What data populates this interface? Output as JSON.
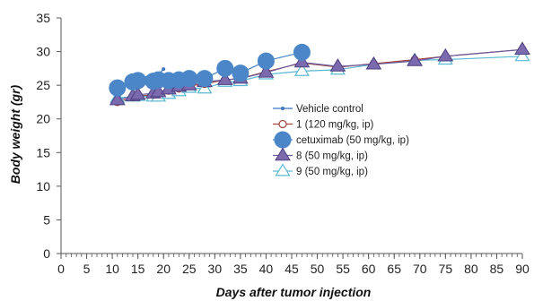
{
  "chart_data": {
    "type": "line",
    "xlabel": "Days after tumor injection",
    "ylabel": "Body weight (gr)",
    "xlim": [
      0,
      90
    ],
    "ylim": [
      0,
      35
    ],
    "xticks": [
      "0",
      "5",
      "10",
      "15",
      "20",
      "25",
      "30",
      "35",
      "40",
      "45",
      "50",
      "55",
      "60",
      "65",
      "70",
      "75",
      "80",
      "85",
      "90"
    ],
    "yticks": [
      "0",
      "5",
      "10",
      "15",
      "20",
      "25",
      "30",
      "35"
    ],
    "grid": false,
    "legend_position": "center-right",
    "series": [
      {
        "name": "Vehicle control",
        "color": "#3a78c2",
        "marker": "small-dot",
        "x": [
          11,
          14,
          15,
          18,
          19,
          20
        ],
        "y": [
          24.8,
          25.8,
          26.2,
          26.3,
          26.6,
          27.4
        ]
      },
      {
        "name": "1 (120 mg/kg, ip)",
        "color": "#a0443c",
        "marker": "open-circle",
        "x": [
          11,
          14,
          15,
          18,
          19,
          21,
          23,
          25,
          28,
          32,
          35,
          40,
          47,
          54,
          61,
          69,
          75,
          90
        ],
        "y": [
          22.5,
          23.2,
          23.4,
          23.6,
          23.8,
          24.2,
          24.5,
          24.9,
          25.2,
          25.8,
          26.0,
          27.0,
          28.3,
          27.7,
          28.2,
          28.8,
          29.3,
          30.3
        ]
      },
      {
        "name": "cetuximab (50 mg/kg, ip)",
        "color": "#4a86c8",
        "marker": "big-circle",
        "x": [
          11,
          14,
          15,
          18,
          19,
          21,
          23,
          25,
          28,
          32,
          35,
          40,
          47
        ],
        "y": [
          24.6,
          25.5,
          25.7,
          25.6,
          25.8,
          25.7,
          25.8,
          26.0,
          26.0,
          27.5,
          26.8,
          28.6,
          29.9
        ]
      },
      {
        "name": "8 (50 mg/kg, ip)",
        "color": "#6a5a9e",
        "marker": "filled-triangle",
        "x": [
          11,
          14,
          15,
          18,
          19,
          21,
          23,
          25,
          28,
          32,
          35,
          40,
          47,
          54,
          61,
          69,
          75,
          90
        ],
        "y": [
          22.8,
          23.4,
          23.6,
          23.8,
          24.0,
          24.4,
          24.8,
          25.0,
          25.5,
          25.8,
          26.0,
          26.9,
          28.4,
          27.8,
          28.1,
          28.6,
          29.3,
          30.3
        ]
      },
      {
        "name": "9 (50 mg/kg, ip)",
        "color": "#5bb8d4",
        "marker": "open-triangle",
        "x": [
          11,
          14,
          15,
          18,
          19,
          21,
          23,
          25,
          28,
          32,
          35,
          40,
          47,
          54,
          61,
          69,
          75,
          90
        ],
        "y": [
          23.1,
          23.3,
          23.4,
          23.3,
          23.3,
          23.7,
          24.1,
          24.6,
          24.5,
          25.5,
          25.6,
          26.6,
          27.1,
          27.3,
          28.1,
          28.7,
          28.8,
          29.3
        ]
      }
    ]
  }
}
